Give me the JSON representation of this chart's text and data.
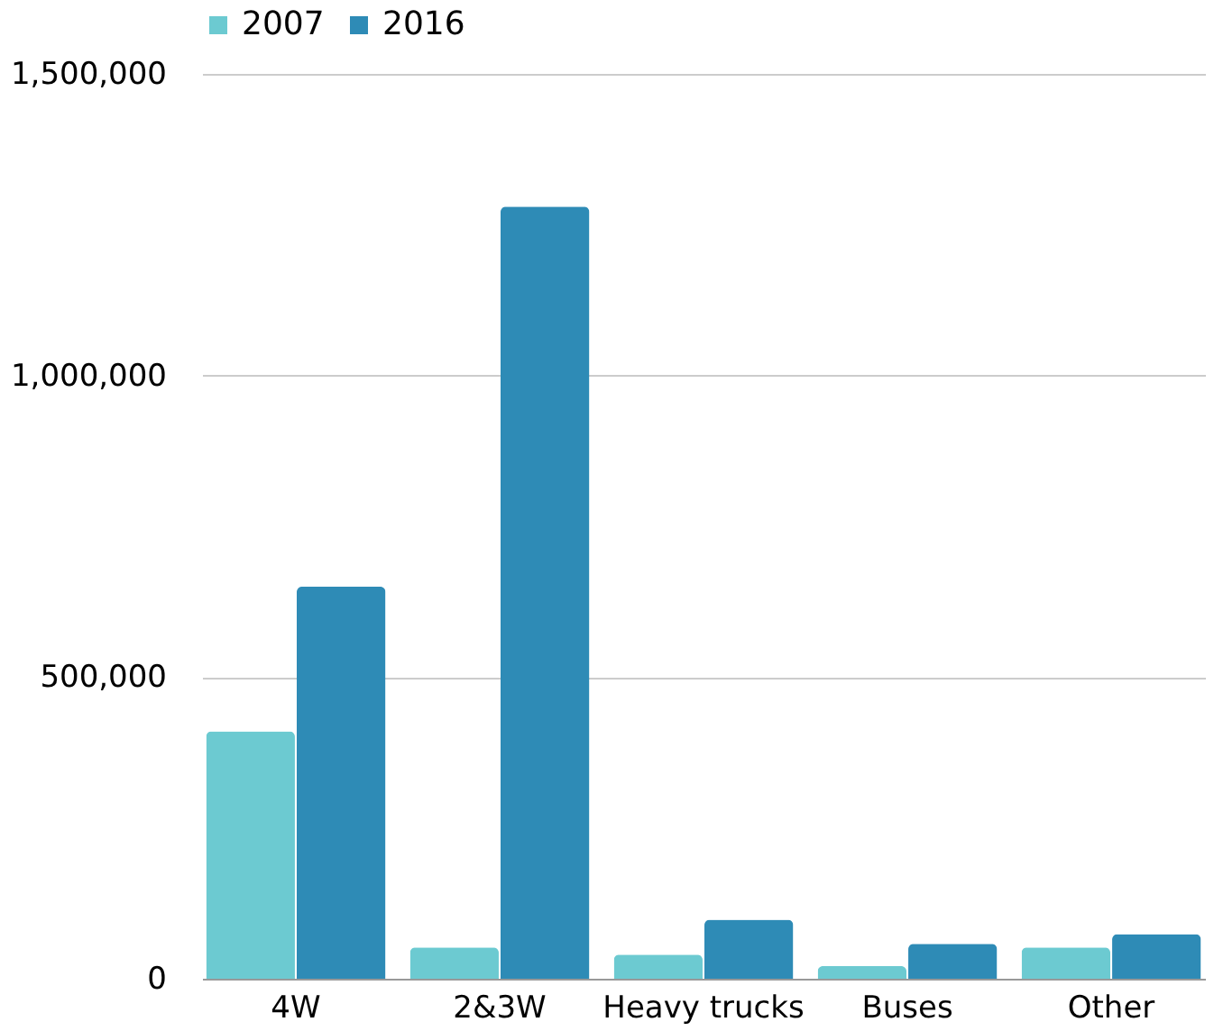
{
  "chart_data": {
    "type": "bar",
    "categories": [
      "4W",
      "2&3W",
      "Heavy trucks",
      "Buses",
      "Other"
    ],
    "series": [
      {
        "name": "2007",
        "color": "#6ccad1",
        "values": [
          410000,
          52000,
          40000,
          21000,
          52000
        ]
      },
      {
        "name": "2016",
        "color": "#2e8bb6",
        "values": [
          650000,
          1280000,
          98000,
          58000,
          74000
        ]
      }
    ],
    "ylim": [
      0,
      1500000
    ],
    "yticks": [
      0,
      {
        "value": 500000,
        "label": "500,000"
      },
      {
        "value": 1000000,
        "label": "1,000,000"
      },
      {
        "value": 1500000,
        "label": "1,500,000"
      }
    ],
    "grid": "y",
    "legend": "top"
  }
}
